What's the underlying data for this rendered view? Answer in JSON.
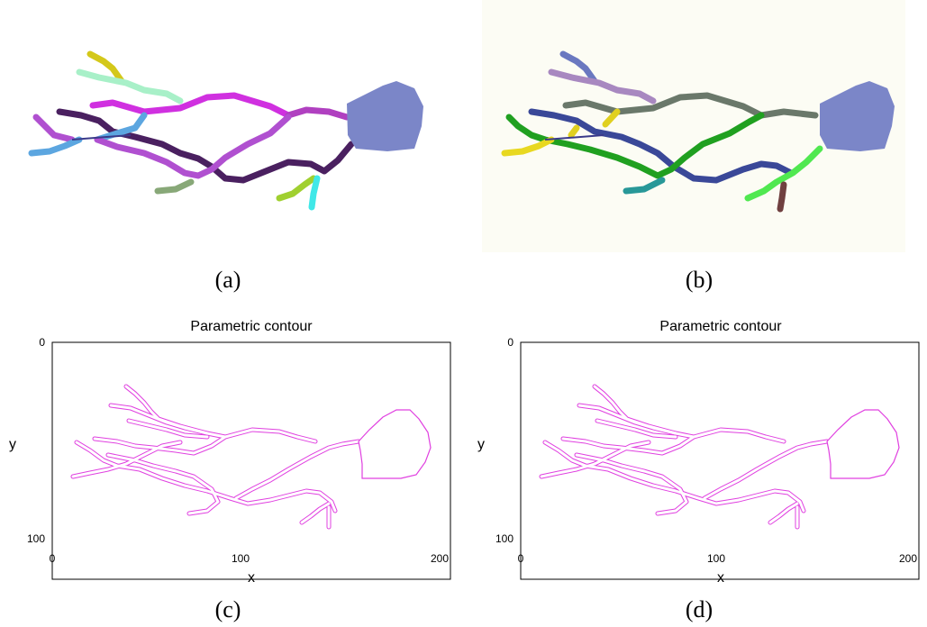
{
  "captions": {
    "a": "(a)",
    "b": "(b)",
    "c": "(c)",
    "d": "(d)"
  },
  "plots": {
    "title": "Parametric contour",
    "xlabel": "x",
    "ylabel": "y",
    "xticks": [
      "0",
      "100",
      "200"
    ],
    "yticks": [
      "0",
      "100"
    ],
    "xlim": [
      0,
      205
    ],
    "ylim": [
      0,
      103
    ],
    "contour_color": "#e040e0"
  },
  "colors": {
    "soma": "#7b86c8",
    "panel_b_background": "#fcfcf4"
  }
}
